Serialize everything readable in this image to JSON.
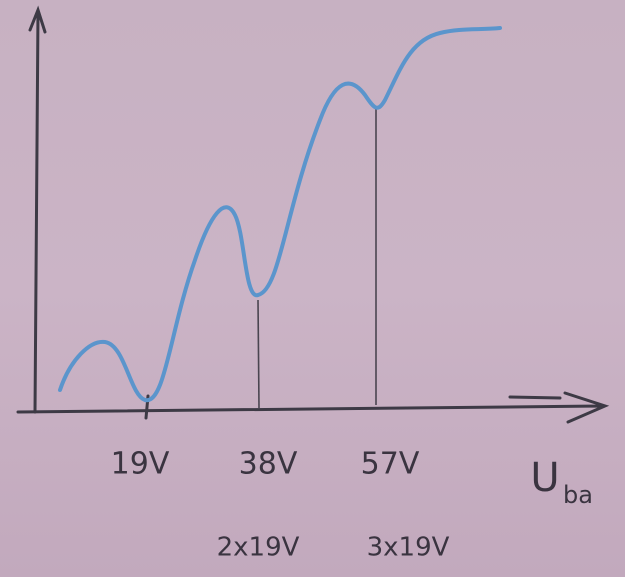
{
  "axis_label": {
    "main": "U",
    "sub": "ba"
  },
  "ticks": [
    {
      "label": "19V"
    },
    {
      "label": "38V",
      "note": "2x19V"
    },
    {
      "label": "57V",
      "note": "3x19V"
    }
  ]
}
